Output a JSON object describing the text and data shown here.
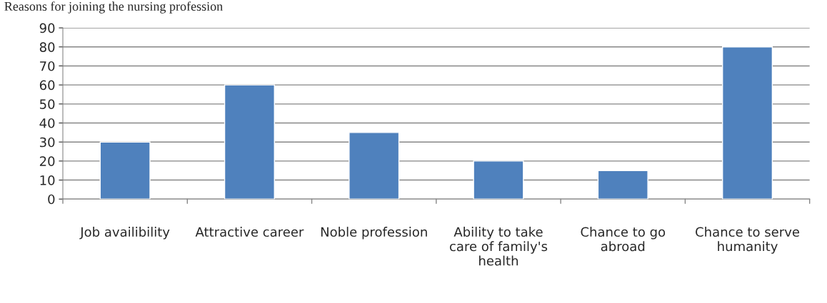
{
  "chart_data": {
    "type": "bar",
    "title": "Reasons for joining the nursing profession",
    "categories": [
      "Job availibility",
      "Attractive career",
      "Noble profession",
      "Ability to take care of family's health",
      "Chance to go abroad",
      "Chance to serve humanity"
    ],
    "values": [
      30,
      60,
      35,
      20,
      15,
      80
    ],
    "color": "#4f81bd",
    "ylim": [
      0,
      90
    ],
    "yticks": [
      0,
      10,
      20,
      30,
      40,
      50,
      60,
      70,
      80,
      90
    ],
    "grid": "y"
  }
}
